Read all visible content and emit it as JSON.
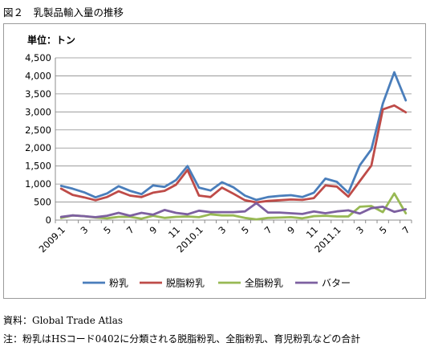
{
  "figure_title": "図２　乳製品輸入量の推移",
  "source_note": "資料：Global Trade Atlas",
  "remark_note": "注：粉乳はHSコード0402に分類される脱脂粉乳、全脂粉乳、育児粉乳などの合計",
  "chart_data": {
    "type": "line",
    "unit_label": "単位：トン",
    "x": [
      "2009.1",
      "2",
      "3",
      "4",
      "5",
      "6",
      "7",
      "8",
      "9",
      "10",
      "11",
      "12",
      "2010.1",
      "2",
      "3",
      "4",
      "5",
      "6",
      "7",
      "8",
      "9",
      "10",
      "11",
      "12",
      "2011.1",
      "2",
      "3",
      "4",
      "5",
      "6",
      "7"
    ],
    "x_tick_labels": [
      "2009.1",
      "3",
      "5",
      "7",
      "9",
      "11",
      "2010.1",
      "3",
      "5",
      "7",
      "9",
      "11",
      "2011.1",
      "3",
      "5",
      "7"
    ],
    "ylim": [
      0,
      4500
    ],
    "y_ticks": [
      0,
      500,
      1000,
      1500,
      2000,
      2500,
      3000,
      3500,
      4000,
      4500
    ],
    "y_tick_labels": [
      "0",
      "500",
      "1,000",
      "1,500",
      "2,000",
      "2,500",
      "3,000",
      "3,500",
      "4,000",
      "4,500"
    ],
    "grid": true,
    "legend_position": "bottom",
    "series": [
      {
        "name": "粉乳",
        "color": "#4a7ebb",
        "values": [
          950,
          870,
          770,
          630,
          740,
          940,
          810,
          720,
          960,
          920,
          1110,
          1500,
          900,
          820,
          1050,
          910,
          680,
          560,
          640,
          670,
          690,
          640,
          760,
          1150,
          1060,
          760,
          1520,
          1960,
          3230,
          4100,
          3320
        ]
      },
      {
        "name": "脱脂粉乳",
        "color": "#be4b48",
        "values": [
          870,
          700,
          630,
          550,
          640,
          800,
          680,
          640,
          760,
          810,
          980,
          1390,
          680,
          640,
          900,
          730,
          550,
          490,
          530,
          550,
          570,
          560,
          610,
          960,
          930,
          650,
          1080,
          1510,
          3070,
          3180,
          2990
        ]
      },
      {
        "name": "全脂粉乳",
        "color": "#98b954",
        "values": [
          60,
          130,
          110,
          70,
          50,
          90,
          90,
          40,
          120,
          60,
          90,
          100,
          80,
          160,
          130,
          130,
          60,
          20,
          60,
          70,
          80,
          50,
          110,
          120,
          100,
          100,
          370,
          390,
          220,
          740,
          190
        ]
      },
      {
        "name": "バター",
        "color": "#7d60a0",
        "values": [
          90,
          130,
          110,
          80,
          120,
          200,
          120,
          200,
          150,
          280,
          200,
          160,
          260,
          220,
          220,
          220,
          240,
          470,
          210,
          210,
          190,
          170,
          240,
          190,
          240,
          270,
          180,
          330,
          370,
          230,
          300
        ]
      }
    ]
  }
}
